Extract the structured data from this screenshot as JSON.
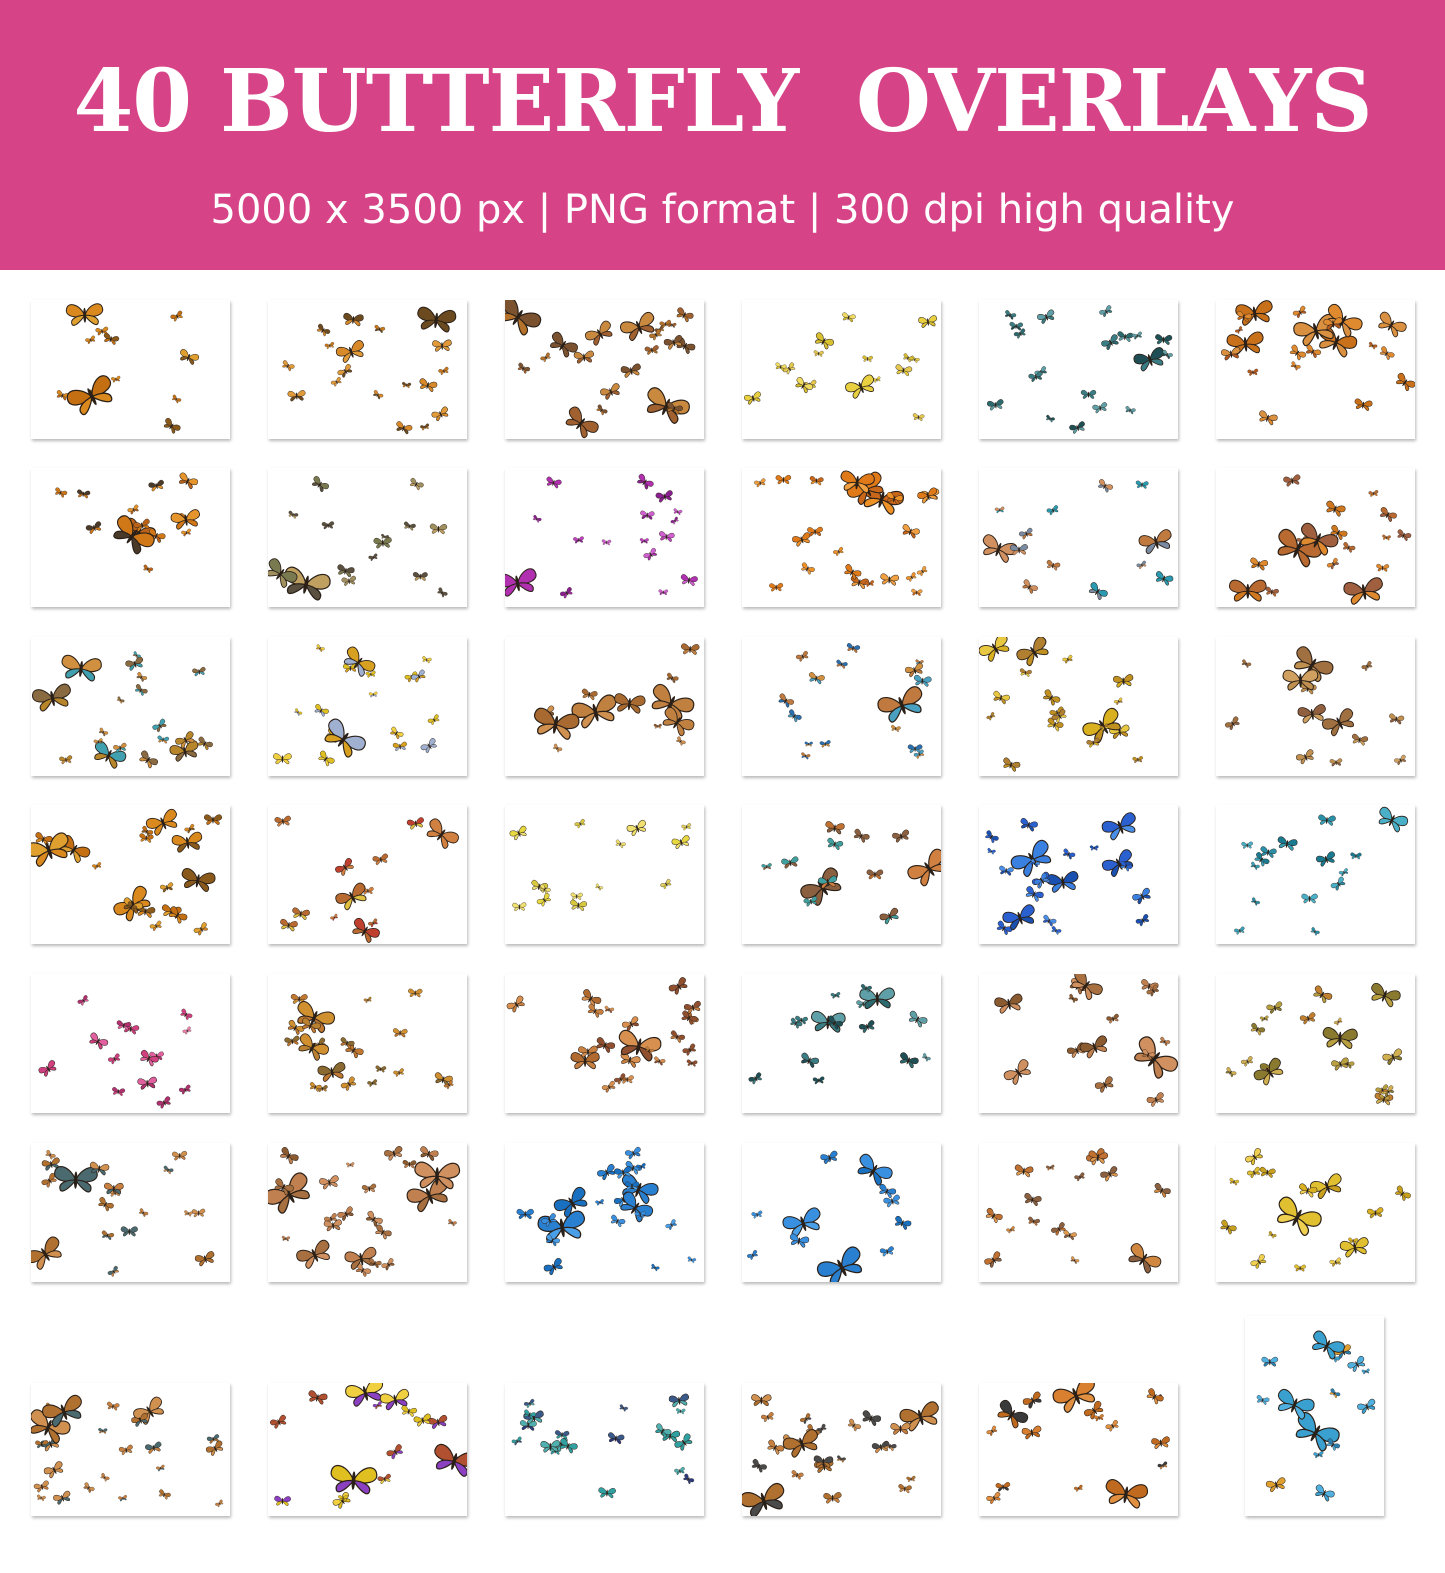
{
  "banner": {
    "title": "40 BUTTERFLY  OVERLAYS",
    "subtitle": "5000 x 3500 px | PNG format | 300 dpi high quality",
    "background_color": "#d64487",
    "text_color": "#ffffff"
  },
  "previews": [
    {
      "palette": [
        "#d9891e",
        "#c46f12",
        "#8a5a1c",
        "#e0a030"
      ]
    },
    {
      "palette": [
        "#c9781a",
        "#d88a2a",
        "#6b4a20",
        "#e09a3a"
      ]
    },
    {
      "palette": [
        "#b5722a",
        "#a06030",
        "#c98a40",
        "#7a5230"
      ]
    },
    {
      "palette": [
        "#e8d040",
        "#f0dc60",
        "#d8c030",
        "#e4c850"
      ]
    },
    {
      "palette": [
        "#3a7d84",
        "#2c6a70",
        "#5fa0a8",
        "#1f4f55"
      ]
    },
    {
      "palette": [
        "#c9701a",
        "#e08a30",
        "#b55a20",
        "#d99040"
      ]
    },
    {
      "palette": [
        "#d07818",
        "#b9621a",
        "#4a3a2a",
        "#e5952b"
      ]
    },
    {
      "palette": [
        "#7a7a50",
        "#a09060",
        "#5a5040",
        "#c0a060"
      ]
    },
    {
      "palette": [
        "#b030b0",
        "#c040c0",
        "#8a2090",
        "#d060d0"
      ]
    },
    {
      "palette": [
        "#e07a18",
        "#ee9228",
        "#c8661a",
        "#f0a040"
      ]
    },
    {
      "palette": [
        "#2a9ab0",
        "#c07a40",
        "#7a8aa0",
        "#d09060"
      ]
    },
    {
      "palette": [
        "#d07820",
        "#b86a30",
        "#e08a30",
        "#a06040"
      ]
    },
    {
      "palette": [
        "#b8862a",
        "#40a0b0",
        "#d09040",
        "#8a6a40"
      ]
    },
    {
      "palette": [
        "#e0c020",
        "#a0b0d0",
        "#d8a020",
        "#f0d040"
      ]
    },
    {
      "palette": [
        "#a86a30",
        "#c08040",
        "#8a5a30",
        "#d09050"
      ]
    },
    {
      "palette": [
        "#2a70b0",
        "#c07a40",
        "#4aa0c0",
        "#d09040"
      ]
    },
    {
      "palette": [
        "#d8b020",
        "#c09020",
        "#e8c840",
        "#b08030"
      ]
    },
    {
      "palette": [
        "#c09050",
        "#a07040",
        "#d0a060",
        "#906040"
      ]
    },
    {
      "palette": [
        "#d9891e",
        "#c46f12",
        "#8a5a1c",
        "#e0a030"
      ]
    },
    {
      "palette": [
        "#b86a30",
        "#d08040",
        "#c04030",
        "#e0c040"
      ]
    },
    {
      "palette": [
        "#e8d840",
        "#f0e070",
        "#d8c840",
        "#e0d060"
      ]
    },
    {
      "palette": [
        "#c07030",
        "#40a0a0",
        "#d08040",
        "#8a6040"
      ]
    },
    {
      "palette": [
        "#2a60d0",
        "#3a80e0",
        "#1a50b0",
        "#4a90e8"
      ]
    },
    {
      "palette": [
        "#2a90a8",
        "#3aa0b8",
        "#1a7a90",
        "#4ab0c8"
      ]
    },
    {
      "palette": [
        "#d04080",
        "#e060a0",
        "#b03070",
        "#f080b0"
      ]
    },
    {
      "palette": [
        "#b88030",
        "#d09030",
        "#8a6a30",
        "#c07830"
      ]
    },
    {
      "palette": [
        "#b06a30",
        "#c88040",
        "#905030",
        "#d89050"
      ]
    },
    {
      "palette": [
        "#3a7d84",
        "#2c6a70",
        "#5fa0a8",
        "#1f4f55"
      ]
    },
    {
      "palette": [
        "#a87040",
        "#c08050",
        "#8a5a30",
        "#d09060"
      ]
    },
    {
      "palette": [
        "#b8a040",
        "#c08030",
        "#8a7a30",
        "#d0b050"
      ]
    },
    {
      "palette": [
        "#b07030",
        "#c88040",
        "#4a6a70",
        "#d09050"
      ]
    },
    {
      "palette": [
        "#a87040",
        "#c08050",
        "#8a5a30",
        "#d09060"
      ]
    },
    {
      "palette": [
        "#2a80d0",
        "#3a90e0",
        "#1a70c0",
        "#4aa0e8"
      ]
    },
    {
      "palette": [
        "#2a80d0",
        "#3a90e0",
        "#1a70c0",
        "#4aa0e8"
      ]
    },
    {
      "palette": [
        "#c07030",
        "#d08840",
        "#8a6040",
        "#e09a50"
      ]
    },
    {
      "palette": [
        "#e0c030",
        "#d8b020",
        "#f0d050",
        "#c8a020"
      ]
    },
    {
      "palette": [
        "#b07030",
        "#c88040",
        "#4a6a70",
        "#d09050"
      ]
    },
    {
      "palette": [
        "#8a40c0",
        "#e0c020",
        "#b05030",
        "#f0d040"
      ]
    },
    {
      "palette": [
        "#3a5a8a",
        "#30a0a0",
        "#2a3a7a",
        "#50b0b0"
      ]
    },
    {
      "palette": [
        "#b07030",
        "#c88040",
        "#4a4a4a",
        "#d09050"
      ]
    },
    {
      "palette": [
        "#c06a20",
        "#d88030",
        "#3a3a3a",
        "#e09040"
      ]
    },
    {
      "palette": [
        "#3aa0d0",
        "#e0a030",
        "#2a80b0",
        "#50b0e0"
      ]
    }
  ]
}
